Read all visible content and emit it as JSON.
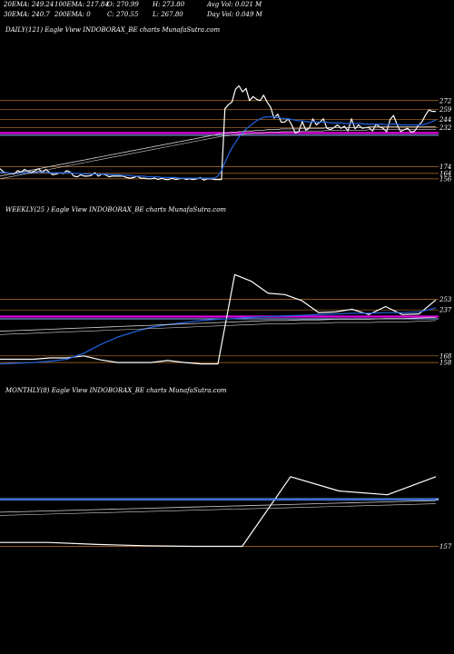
{
  "header": {
    "row1": [
      {
        "label": "20EMA: 249.24"
      },
      {
        "label": "100EMA: 217.84"
      },
      {
        "label": "O: 270.99"
      },
      {
        "label": "H: 273.80"
      },
      {
        "label": "Avg Vol: 0.021 M"
      }
    ],
    "row2": [
      {
        "label": "30EMA: 240.7"
      },
      {
        "label": "200EMA: 0"
      },
      {
        "label": "C: 270.55"
      },
      {
        "label": "L: 267.80"
      },
      {
        "label": "Day Vol: 0.049 M"
      }
    ]
  },
  "colors": {
    "price": "#ffffff",
    "ema_fast": "#1f5fd6",
    "ema_slow": "#cfcfcf",
    "level": "#b8732a",
    "magenta": "#e000e0",
    "highlight": "#8fb0ff"
  },
  "chart_data": [
    {
      "type": "line",
      "label": "DAILY(121) Eagle   View  INDOBORAX_BE charts MunafaSutra.com",
      "ylim": [
        145,
        300
      ],
      "level_lines": [
        272,
        259,
        244,
        232,
        174,
        164,
        156
      ],
      "tick_labels": [
        "272",
        "259",
        "244",
        "232",
        "174",
        "164",
        "156"
      ],
      "magenta_level": 224,
      "series": [
        {
          "role": "price",
          "values": [
            171,
            166,
            165,
            164,
            163,
            168,
            166,
            170,
            167,
            166,
            168,
            171,
            165,
            170,
            166,
            162,
            163,
            165,
            164,
            168,
            166,
            160,
            159,
            162,
            160,
            160,
            161,
            165,
            160,
            163,
            162,
            159,
            160,
            160,
            160,
            160,
            158,
            157,
            158,
            160,
            157,
            157,
            156,
            156,
            157,
            155,
            157,
            155,
            155,
            157,
            155,
            156,
            157,
            155,
            156,
            155,
            156,
            158,
            154,
            156,
            156,
            155,
            155,
            155,
            260,
            266,
            270,
            289,
            294,
            285,
            290,
            272,
            278,
            274,
            272,
            280,
            270,
            262,
            246,
            252,
            240,
            240,
            245,
            236,
            224,
            226,
            241,
            228,
            231,
            245,
            236,
            240,
            245,
            231,
            229,
            232,
            236,
            231,
            234,
            227,
            245,
            230,
            236,
            231,
            232,
            232,
            227,
            237,
            233,
            231,
            226,
            244,
            250,
            236,
            226,
            229,
            231,
            225,
            227,
            235,
            240,
            250,
            258,
            256,
            256
          ]
        },
        {
          "role": "ema_fast",
          "values": [
            166,
            165,
            165,
            164,
            164,
            164,
            164,
            165,
            165,
            165,
            165,
            166,
            165,
            166,
            165,
            165,
            165,
            165,
            165,
            165,
            165,
            164,
            164,
            164,
            163,
            163,
            163,
            163,
            163,
            163,
            163,
            162,
            162,
            162,
            162,
            161,
            161,
            161,
            160,
            160,
            160,
            160,
            159,
            159,
            159,
            159,
            158,
            158,
            158,
            158,
            158,
            157,
            157,
            157,
            157,
            157,
            157,
            157,
            157,
            157,
            157,
            157,
            160,
            168,
            180,
            192,
            202,
            210,
            218,
            224,
            230,
            234,
            238,
            242,
            245,
            247,
            248,
            248,
            248,
            247,
            246,
            245,
            245,
            244,
            243,
            242,
            242,
            241,
            240,
            241,
            240,
            240,
            240,
            240,
            239,
            239,
            239,
            239,
            238,
            238,
            238,
            238,
            238,
            238,
            237,
            237,
            237,
            237,
            237,
            237,
            236,
            237,
            237,
            237,
            236,
            236,
            236,
            236,
            236,
            236,
            236,
            237,
            239,
            241,
            243
          ]
        },
        {
          "role": "ema_slow",
          "values": [
            160,
            161,
            162,
            163,
            164,
            165,
            166,
            167,
            168,
            169,
            170,
            171,
            172,
            173,
            174,
            175,
            176,
            177,
            178,
            179,
            180,
            181,
            182,
            183,
            184,
            185,
            186,
            187,
            188,
            189,
            190,
            191,
            192,
            193,
            194,
            195,
            196,
            197,
            198,
            199,
            200,
            201,
            202,
            203,
            204,
            205,
            206,
            207,
            208,
            209,
            210,
            211,
            212,
            213,
            214,
            215,
            216,
            217,
            218,
            219,
            220,
            221,
            222,
            223,
            224,
            224,
            225,
            225,
            226,
            226,
            227,
            227,
            227,
            228,
            228,
            228,
            229,
            229,
            229,
            229,
            230,
            230,
            230,
            230,
            230,
            230,
            231,
            231,
            231,
            231,
            231,
            231,
            231,
            232,
            232,
            232,
            232,
            232,
            232,
            232,
            232,
            232,
            232,
            232,
            232,
            233,
            233,
            233,
            233,
            233,
            233,
            233,
            233,
            233,
            233,
            233,
            233,
            233,
            233,
            233,
            233,
            233,
            233,
            233,
            233
          ]
        },
        {
          "role": "ema_slow2",
          "values": [
            156,
            157,
            158,
            159,
            160,
            161,
            162,
            163,
            164,
            165,
            166,
            167,
            168,
            169,
            170,
            171,
            172,
            173,
            174,
            175,
            176,
            177,
            178,
            179,
            180,
            181,
            182,
            183,
            184,
            185,
            186,
            187,
            188,
            189,
            190,
            191,
            192,
            193,
            194,
            195,
            196,
            197,
            198,
            199,
            200,
            201,
            202,
            203,
            204,
            205,
            206,
            207,
            208,
            209,
            210,
            211,
            212,
            213,
            214,
            215,
            216,
            217,
            218,
            219,
            220,
            220,
            221,
            221,
            222,
            222,
            223,
            223,
            223,
            224,
            224,
            224,
            225,
            225,
            225,
            225,
            226,
            226,
            226,
            226,
            226,
            226,
            227,
            227,
            227,
            227,
            227,
            227,
            227,
            228,
            228,
            228,
            228,
            228,
            228,
            228,
            228,
            228,
            228,
            228,
            228,
            229,
            229,
            229,
            229,
            229,
            229,
            229,
            229,
            229,
            229,
            229,
            229,
            229,
            229,
            229,
            229,
            229,
            229,
            229,
            229
          ]
        }
      ]
    },
    {
      "type": "line",
      "label": "WEEKLY(25                    ) Eagle   View  INDOBORAX_BE charts MunafaSutra.com",
      "ylim": [
        150,
        300
      ],
      "level_lines": [
        253,
        237,
        168,
        158
      ],
      "tick_labels": [
        "253",
        "237",
        "168",
        "158"
      ],
      "magenta_level": 227,
      "series": [
        {
          "role": "price",
          "values": [
            163,
            163,
            163,
            165,
            165,
            168,
            162,
            158,
            158,
            158,
            161,
            158,
            156,
            156,
            290,
            280,
            262,
            260,
            251,
            233,
            234,
            238,
            230,
            242,
            230,
            231,
            252
          ]
        },
        {
          "role": "ema_fast",
          "values": [
            156,
            157,
            158,
            160,
            163,
            172,
            185,
            196,
            204,
            211,
            215,
            218,
            221,
            223,
            224,
            226,
            227,
            228,
            229,
            230,
            231,
            232,
            232,
            233,
            233,
            234,
            240
          ]
        },
        {
          "role": "ema_slow",
          "values": [
            205,
            206,
            207,
            208,
            209,
            210,
            211,
            212,
            213,
            214,
            215,
            216,
            217,
            218,
            219,
            220,
            221,
            221,
            222,
            222,
            223,
            223,
            223,
            224,
            224,
            225,
            226
          ]
        },
        {
          "role": "ema_slow2",
          "values": [
            200,
            201,
            202,
            203,
            204,
            205,
            206,
            207,
            208,
            209,
            210,
            211,
            212,
            213,
            214,
            215,
            216,
            216,
            217,
            217,
            218,
            218,
            218,
            219,
            219,
            220,
            221
          ]
        }
      ]
    },
    {
      "type": "line",
      "label": "MONTHLY(8) Eagle   View  INDOBORAX_BE charts MunafaSutra.com",
      "ylim": [
        145,
        300
      ],
      "level_lines": [
        157
      ],
      "tick_labels": [
        "157"
      ],
      "series": [
        {
          "role": "price",
          "values": [
            163,
            163,
            160,
            158,
            157,
            157,
            265,
            243,
            237,
            265
          ]
        },
        {
          "role": "ema_fast",
          "values": [
            230,
            230,
            230,
            230,
            230,
            230,
            230,
            230,
            230,
            230
          ]
        },
        {
          "role": "ema_slow",
          "values": [
            210,
            212,
            214,
            216,
            218,
            220,
            222,
            224,
            226,
            228
          ]
        },
        {
          "role": "ema_slow2",
          "values": [
            205,
            207,
            209,
            211,
            213,
            215,
            217,
            219,
            221,
            223
          ]
        }
      ]
    }
  ]
}
